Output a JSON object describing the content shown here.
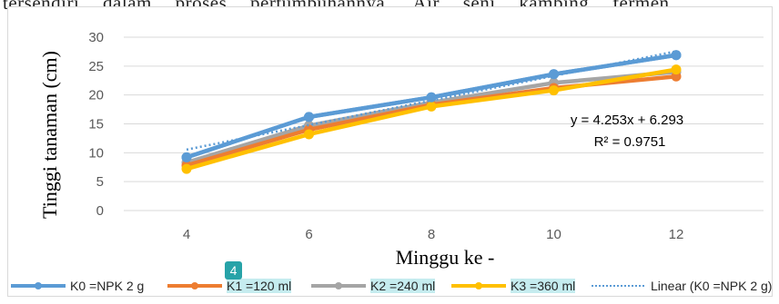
{
  "document": {
    "partial_line": "tersendiri dalam proses pertumbuhannya. Air seni kambing fermen",
    "page_badge": "4"
  },
  "colors": {
    "K0": "#5b9bd5",
    "K1": "#ed7d31",
    "K2": "#a5a5a5",
    "K3": "#ffc000",
    "trend": "#5b9bd5",
    "gridline": "#d9d9d9",
    "legend_highlight": "#c5ecef"
  },
  "chart_data": {
    "type": "line",
    "title": "",
    "xlabel": "Minggu ke -",
    "ylabel": "Tinggi tanaman (cm)",
    "categories": [
      "4",
      "6",
      "8",
      "10",
      "12"
    ],
    "x": [
      4,
      6,
      8,
      10,
      12
    ],
    "ylim": [
      0,
      30
    ],
    "yticks": [
      0,
      5,
      10,
      15,
      20,
      25,
      30
    ],
    "grid": "horizontal",
    "legend_position": "bottom",
    "series": [
      {
        "key": "K0",
        "name": "K0 =NPK 2 g",
        "values": [
          9.2,
          16.2,
          19.6,
          23.6,
          26.9
        ]
      },
      {
        "key": "K1",
        "name": "K1 =120 ml",
        "values": [
          7.8,
          14.0,
          18.3,
          21.2,
          23.2
        ]
      },
      {
        "key": "K2",
        "name": "K2 =240 ml",
        "values": [
          8.3,
          14.7,
          18.7,
          22.1,
          24.0
        ]
      },
      {
        "key": "K3",
        "name": "K3 =360 ml",
        "values": [
          7.2,
          13.2,
          18.0,
          20.8,
          24.4
        ]
      }
    ],
    "trendline": {
      "name": "Linear (K0 =NPK 2 g)",
      "of_series": "K0",
      "slope": 4.253,
      "intercept": 6.293,
      "equation": "y = 4.253x + 6.293",
      "r_squared": "R² = 0.9751"
    }
  }
}
